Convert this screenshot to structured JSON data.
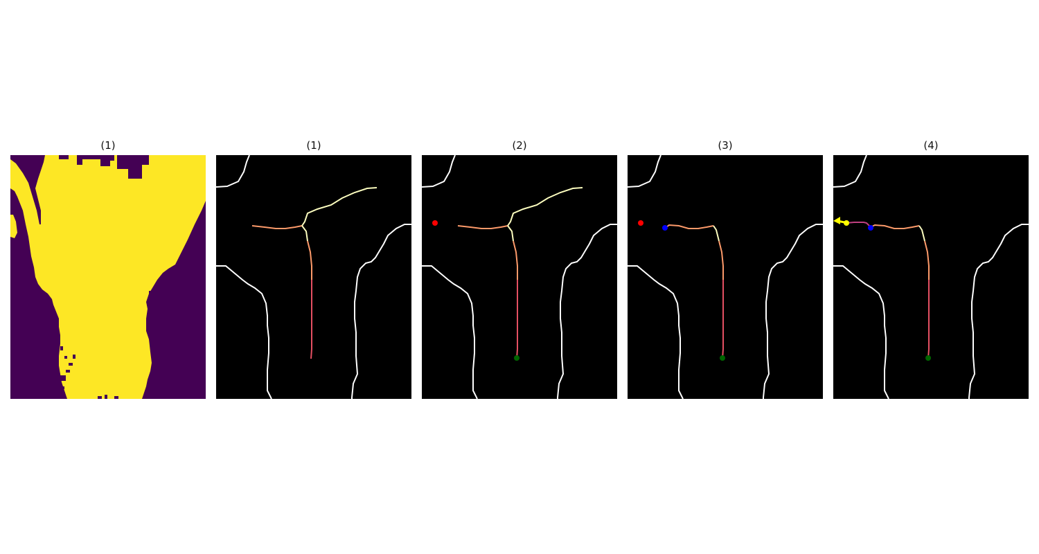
{
  "panels": [
    {
      "title": "(1)",
      "kind": "segmentation-mask",
      "colors": {
        "background": "#440154",
        "foreground": "#fde725"
      }
    },
    {
      "title": "(1)",
      "kind": "skeleton-view"
    },
    {
      "title": "(2)",
      "kind": "skeleton-view"
    },
    {
      "title": "(3)",
      "kind": "skeleton-view"
    },
    {
      "title": "(4)",
      "kind": "skeleton-view"
    }
  ],
  "colors": {
    "boundary": "#ffffff",
    "skeleton_pale": "#fcfdbf",
    "skeleton_warm": "#fd9a6a",
    "skeleton_red": "#e55063",
    "marker_red": "#ff0000",
    "marker_blue": "#0000ff",
    "marker_green": "#006400",
    "marker_yellow": "#ffff00",
    "panel_background": "#000000"
  },
  "icons": [
    "red-marker-icon",
    "blue-marker-icon",
    "green-marker-icon",
    "yellow-marker-icon",
    "yellow-arrow-icon"
  ]
}
